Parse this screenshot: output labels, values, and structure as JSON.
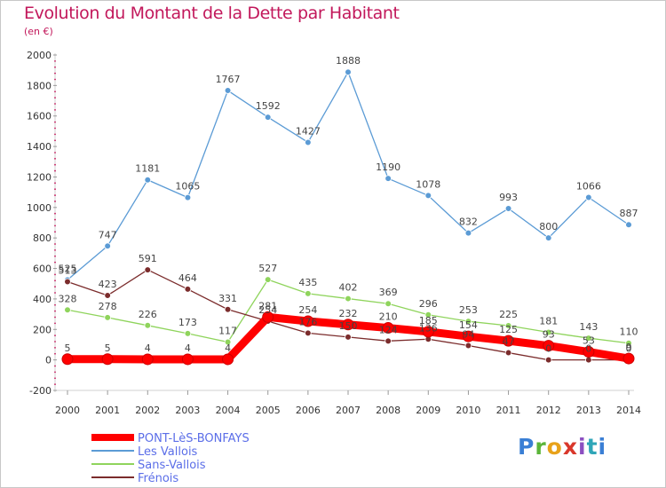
{
  "chart_data": {
    "type": "line",
    "title": "Evolution du Montant de la Dette par Habitant",
    "subtitle": "(en €)",
    "xlabel": "",
    "ylabel": "",
    "x": [
      "2000",
      "2001",
      "2002",
      "2003",
      "2004",
      "2005",
      "2006",
      "2007",
      "2008",
      "2009",
      "2010",
      "2011",
      "2012",
      "2013",
      "2014"
    ],
    "ylim": [
      -200,
      2000
    ],
    "yticks": [
      -200,
      0,
      200,
      400,
      600,
      800,
      1000,
      1200,
      1400,
      1600,
      1800,
      2000
    ],
    "grid": false,
    "legend": "bottom-left",
    "series": [
      {
        "name": "PONT-LèS-BONFAYS",
        "color": "#ff0000",
        "values": [
          5,
          5,
          4,
          4,
          4,
          281,
          254,
          232,
          210,
          185,
          154,
          125,
          93,
          53,
          9
        ],
        "labels": [
          "5",
          "5",
          "4",
          "4",
          "4",
          "281",
          "254",
          "232",
          "210",
          "185",
          "154",
          "125",
          "93",
          "53",
          "9"
        ]
      },
      {
        "name": "Les Vallois",
        "color": "#5b9bd5",
        "values": [
          525,
          747,
          1181,
          1065,
          1767,
          1592,
          1427,
          1888,
          1190,
          1078,
          832,
          993,
          800,
          1066,
          887
        ],
        "labels": [
          "525",
          "747",
          "1181",
          "1065",
          "1767",
          "1592",
          "1427",
          "1888",
          "1190",
          "1078",
          "832",
          "993",
          "800",
          "1066",
          "887"
        ]
      },
      {
        "name": "Sans-Vallois",
        "color": "#8fd45c",
        "values": [
          328,
          278,
          226,
          173,
          117,
          527,
          435,
          402,
          369,
          296,
          253,
          225,
          181,
          143,
          110
        ],
        "labels": [
          "328",
          "278",
          "226",
          "173",
          "117",
          "527",
          "435",
          "402",
          "369",
          "296",
          "253",
          "225",
          "181",
          "143",
          "110"
        ]
      },
      {
        "name": "Frénois",
        "color": "#7b2c2c",
        "values": [
          513,
          423,
          591,
          464,
          331,
          254,
          176,
          150,
          124,
          136,
          94,
          47,
          0,
          0,
          0
        ],
        "labels": [
          "513",
          "423",
          "591",
          "464",
          "331",
          "254",
          "176",
          "150",
          "124",
          "136",
          "94",
          "47",
          "0",
          "0",
          "0"
        ]
      }
    ]
  },
  "logo": {
    "text": "Proxiti"
  }
}
